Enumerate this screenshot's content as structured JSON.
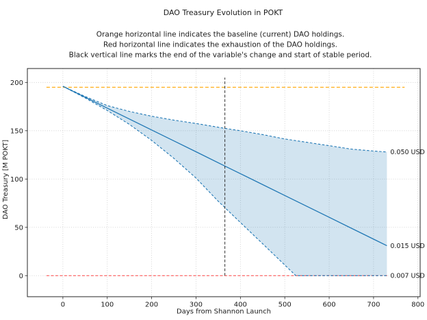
{
  "chart_data": {
    "type": "line",
    "title": "DAO Treasury Evolution in POKT",
    "subtitle_lines": [
      "Orange horizontal line indicates the baseline (current) DAO holdings.",
      "Red horizontal line indicates the exhaustion of the DAO holdings.",
      "Black vertical line marks the end of the variable's change and start of stable period."
    ],
    "xlabel": "Days from Shannon Launch",
    "ylabel": "DAO Treasury [M POKT]",
    "xticks": [
      0,
      100,
      200,
      300,
      400,
      500,
      600,
      700,
      800
    ],
    "yticks": [
      0,
      50,
      100,
      150,
      200
    ],
    "xlim": [
      -80,
      805
    ],
    "ylim": [
      -21.8,
      214.4
    ],
    "grid": "dotted-both",
    "series": [
      {
        "label": "0.050 USD",
        "style": "dashed",
        "color": "#1f77b4",
        "points": [
          [
            0,
            196
          ],
          [
            50,
            185.5
          ],
          [
            100,
            176
          ],
          [
            150,
            170
          ],
          [
            200,
            165
          ],
          [
            250,
            161
          ],
          [
            300,
            157.5
          ],
          [
            365,
            152.5
          ],
          [
            400,
            150
          ],
          [
            450,
            146
          ],
          [
            500,
            141.5
          ],
          [
            550,
            138
          ],
          [
            600,
            134.5
          ],
          [
            650,
            131
          ],
          [
            700,
            129
          ],
          [
            730,
            128
          ]
        ]
      },
      {
        "label": "0.015 USD",
        "style": "solid",
        "color": "#1f77b4",
        "points": [
          [
            0,
            196
          ],
          [
            100,
            173.4
          ],
          [
            200,
            150.8
          ],
          [
            300,
            128.2
          ],
          [
            365,
            113.5
          ],
          [
            400,
            105.6
          ],
          [
            500,
            83
          ],
          [
            600,
            60.4
          ],
          [
            700,
            37.8
          ],
          [
            730,
            31
          ]
        ]
      },
      {
        "label": "0.007 USD",
        "style": "dashed",
        "color": "#1f77b4",
        "points": [
          [
            0,
            196
          ],
          [
            50,
            184
          ],
          [
            100,
            171
          ],
          [
            150,
            156.5
          ],
          [
            200,
            140
          ],
          [
            250,
            121.5
          ],
          [
            300,
            101
          ],
          [
            350,
            77
          ],
          [
            400,
            55
          ],
          [
            450,
            33
          ],
          [
            500,
            11
          ],
          [
            525,
            0
          ],
          [
            730,
            0
          ]
        ]
      }
    ],
    "band": {
      "between": [
        "0.050 USD",
        "0.007 USD"
      ],
      "fill_color": "#1f77b4",
      "fill_opacity": 0.2
    },
    "annotations": {
      "baseline_line": {
        "value": 195,
        "color": "#ffa500",
        "style": "dashed",
        "span_days": [
          -37,
          770
        ]
      },
      "exhaustion_line": {
        "value": 0,
        "color": "#ff3030",
        "style": "dashed",
        "span_days": [
          -37,
          732
        ]
      },
      "stable_start_line": {
        "day": 365,
        "from_value": 0,
        "to_value": 205,
        "color": "#2f2f2f",
        "style": "dashed"
      }
    },
    "colors": {
      "series_line": "#1f77b4",
      "series_label_text": "#1f77b4",
      "grid": "#c9c9c9",
      "frame": "#262626"
    }
  }
}
